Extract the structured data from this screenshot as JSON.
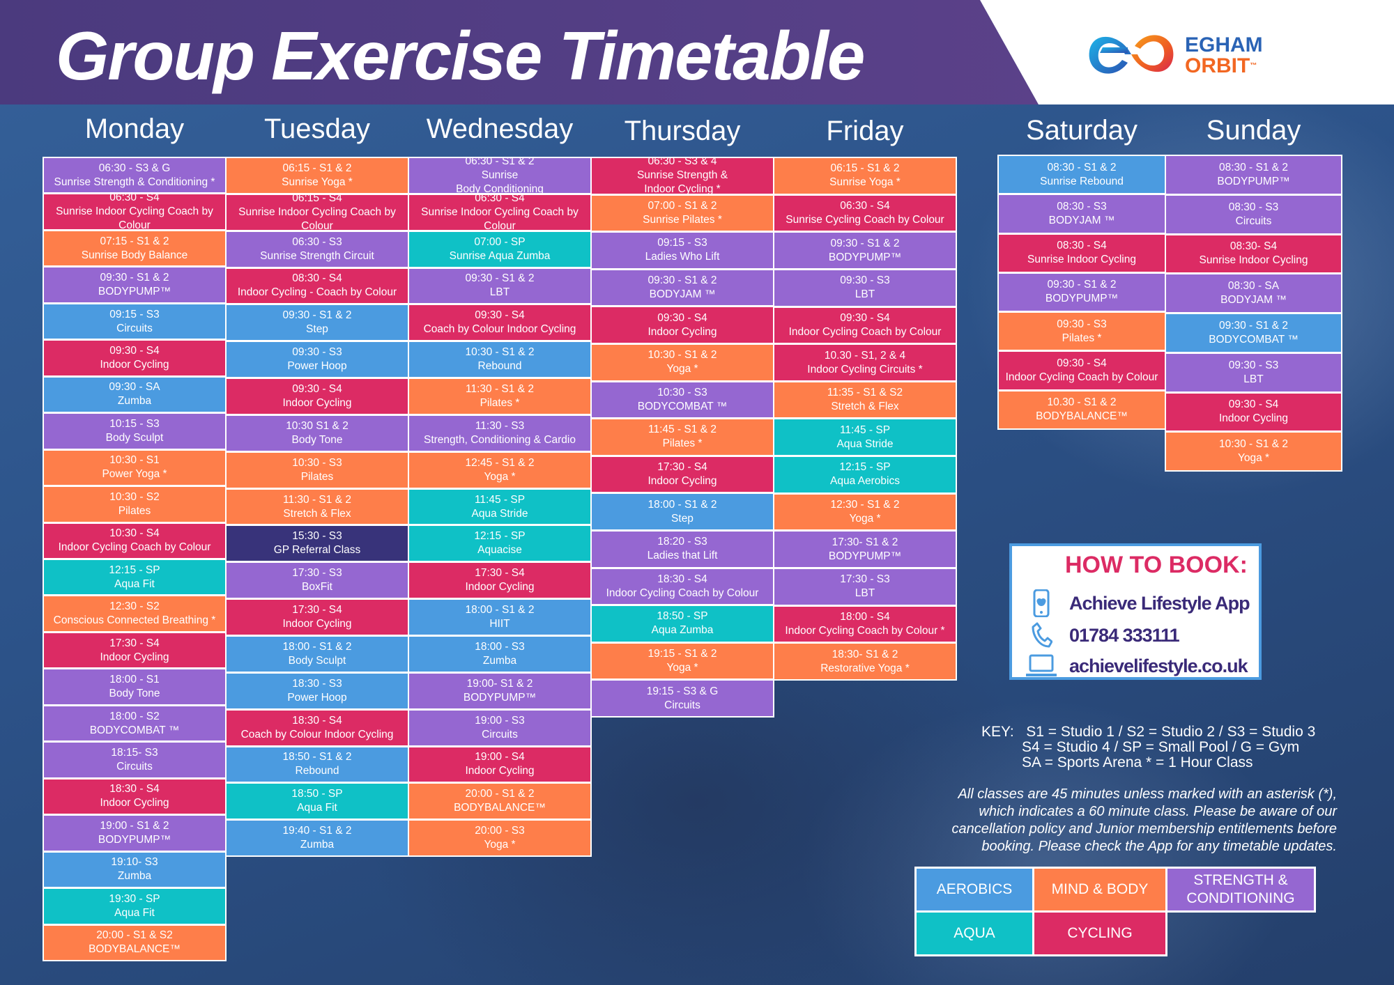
{
  "header": {
    "title": "Group Exercise Timetable",
    "brand_line1": "EGHAM",
    "brand_line2": "ORBIT",
    "brand_mark": "™"
  },
  "colors": {
    "aerobics": "#4b9be0",
    "mind_body": "#fe7e4a",
    "strength": "#9567d1",
    "aqua": "#0fc1c6",
    "cycling": "#dc2b64",
    "referral": "#38337a",
    "header_purple": "#4b3a7e",
    "book_title": "#dc2b64"
  },
  "schedule": [
    {
      "day": "Monday",
      "classes": [
        {
          "lines": [
            "06:30 - S3 & G",
            "Sunrise Strength & Conditioning *"
          ],
          "cat": "str"
        },
        {
          "lines": [
            "06:30 - S4",
            "Sunrise Indoor Cycling Coach by",
            "Colour"
          ],
          "cat": "cyc"
        },
        {
          "lines": [
            "07:15 - S1 & 2",
            "Sunrise Body Balance"
          ],
          "cat": "mind"
        },
        {
          "lines": [
            "09:30 - S1 & 2",
            "BODYPUMP™"
          ],
          "cat": "str"
        },
        {
          "lines": [
            "09:15 - S3",
            "Circuits"
          ],
          "cat": "aero"
        },
        {
          "lines": [
            "09:30 - S4",
            "Indoor Cycling"
          ],
          "cat": "cyc"
        },
        {
          "lines": [
            "09:30 - SA",
            "Zumba"
          ],
          "cat": "aero"
        },
        {
          "lines": [
            "10:15 - S3",
            "Body Sculpt"
          ],
          "cat": "str"
        },
        {
          "lines": [
            "10:30 - S1",
            "Power Yoga *"
          ],
          "cat": "mind"
        },
        {
          "lines": [
            "10:30 - S2",
            "Pilates"
          ],
          "cat": "mind"
        },
        {
          "lines": [
            "10:30 - S4",
            "Indoor Cycling Coach by Colour"
          ],
          "cat": "cyc"
        },
        {
          "lines": [
            "12:15 - SP",
            "Aqua Fit"
          ],
          "cat": "aqua"
        },
        {
          "lines": [
            "12:30 - S2",
            "Conscious Connected Breathing *"
          ],
          "cat": "mind"
        },
        {
          "lines": [
            "17:30 - S4",
            "Indoor Cycling"
          ],
          "cat": "cyc"
        },
        {
          "lines": [
            "18:00 - S1",
            "Body Tone"
          ],
          "cat": "str"
        },
        {
          "lines": [
            "18:00 - S2",
            "BODYCOMBAT ™"
          ],
          "cat": "str"
        },
        {
          "lines": [
            "18:15- S3",
            "Circuits"
          ],
          "cat": "str"
        },
        {
          "lines": [
            "18:30 - S4",
            "Indoor Cycling"
          ],
          "cat": "cyc"
        },
        {
          "lines": [
            "19:00 - S1 & 2",
            "BODYPUMP™"
          ],
          "cat": "str"
        },
        {
          "lines": [
            "19:10- S3",
            "Zumba"
          ],
          "cat": "aero"
        },
        {
          "lines": [
            "19:30 - SP",
            "Aqua Fit"
          ],
          "cat": "aqua"
        },
        {
          "lines": [
            "20:00 - S1 & S2",
            "BODYBALANCE™"
          ],
          "cat": "mind"
        }
      ]
    },
    {
      "day": "Tuesday",
      "classes": [
        {
          "lines": [
            "06:15 - S1 & 2",
            "Sunrise Yoga *"
          ],
          "cat": "mind"
        },
        {
          "lines": [
            "06:15 - S4",
            "Sunrise Indoor Cycling Coach by",
            "Colour"
          ],
          "cat": "cyc"
        },
        {
          "lines": [
            "06:30 - S3",
            "Sunrise Strength Circuit"
          ],
          "cat": "str"
        },
        {
          "lines": [
            "08:30 - S4",
            "Indoor Cycling - Coach by Colour"
          ],
          "cat": "cyc"
        },
        {
          "lines": [
            "09:30 - S1 & 2",
            "Step"
          ],
          "cat": "aero"
        },
        {
          "lines": [
            "09:30 - S3",
            "Power Hoop"
          ],
          "cat": "aero"
        },
        {
          "lines": [
            "09:30 - S4",
            "Indoor Cycling"
          ],
          "cat": "cyc"
        },
        {
          "lines": [
            "10:30 S1 & 2",
            "Body Tone"
          ],
          "cat": "str"
        },
        {
          "lines": [
            "10:30 - S3",
            "Pilates"
          ],
          "cat": "mind"
        },
        {
          "lines": [
            "11:30 - S1 & 2",
            "Stretch & Flex"
          ],
          "cat": "mind"
        },
        {
          "lines": [
            "15:30 - S3",
            "GP Referral Class"
          ],
          "cat": "gp"
        },
        {
          "lines": [
            "17:30 - S3",
            "BoxFit"
          ],
          "cat": "str"
        },
        {
          "lines": [
            "17:30 - S4",
            "Indoor Cycling"
          ],
          "cat": "cyc"
        },
        {
          "lines": [
            "18:00 - S1 & 2",
            "Body Sculpt"
          ],
          "cat": "aero"
        },
        {
          "lines": [
            "18:30 - S3",
            "Power Hoop"
          ],
          "cat": "aero"
        },
        {
          "lines": [
            "18:30 - S4",
            "Coach by Colour Indoor Cycling"
          ],
          "cat": "cyc"
        },
        {
          "lines": [
            "18:50 - S1 & 2",
            "Rebound"
          ],
          "cat": "aero"
        },
        {
          "lines": [
            "18:50 - SP",
            "Aqua Fit"
          ],
          "cat": "aqua"
        },
        {
          "lines": [
            "19:40 - S1 & 2",
            "Zumba"
          ],
          "cat": "aero"
        }
      ]
    },
    {
      "day": "Wednesday",
      "classes": [
        {
          "lines": [
            "06:30 - S1 & 2",
            "Sunrise",
            "Body Conditioning"
          ],
          "cat": "str"
        },
        {
          "lines": [
            "06:30 - S4",
            "Sunrise Indoor Cycling Coach by",
            "Colour"
          ],
          "cat": "cyc"
        },
        {
          "lines": [
            "07:00 - SP",
            "Sunrise Aqua Zumba"
          ],
          "cat": "aqua"
        },
        {
          "lines": [
            "09:30 - S1 & 2",
            "LBT"
          ],
          "cat": "str"
        },
        {
          "lines": [
            "09:30 - S4",
            "Coach by Colour Indoor Cycling"
          ],
          "cat": "cyc"
        },
        {
          "lines": [
            "10:30 - S1 & 2",
            "Rebound"
          ],
          "cat": "aero"
        },
        {
          "lines": [
            "11:30 - S1 & 2",
            "Pilates *"
          ],
          "cat": "mind"
        },
        {
          "lines": [
            "11:30 - S3",
            "Strength, Conditioning & Cardio"
          ],
          "cat": "str"
        },
        {
          "lines": [
            "12:45 - S1 & 2",
            "Yoga *"
          ],
          "cat": "mind"
        },
        {
          "lines": [
            "11:45 - SP",
            "Aqua Stride"
          ],
          "cat": "aqua"
        },
        {
          "lines": [
            "12:15 - SP",
            "Aquacise"
          ],
          "cat": "aqua"
        },
        {
          "lines": [
            "17:30 - S4",
            "Indoor Cycling"
          ],
          "cat": "cyc"
        },
        {
          "lines": [
            "18:00 - S1 & 2",
            "HIIT"
          ],
          "cat": "aero"
        },
        {
          "lines": [
            "18:00 - S3",
            "Zumba"
          ],
          "cat": "aero"
        },
        {
          "lines": [
            "19:00- S1 & 2",
            "BODYPUMP™"
          ],
          "cat": "str"
        },
        {
          "lines": [
            "19:00 - S3",
            "Circuits"
          ],
          "cat": "str"
        },
        {
          "lines": [
            "19:00 - S4",
            "Indoor Cycling"
          ],
          "cat": "cyc"
        },
        {
          "lines": [
            "20:00 - S1 & 2",
            "BODYBALANCE™"
          ],
          "cat": "mind"
        },
        {
          "lines": [
            "20:00 - S3",
            "Yoga *"
          ],
          "cat": "mind"
        }
      ]
    },
    {
      "day": "Thursday",
      "classes": [
        {
          "lines": [
            "06:30 - S3 & 4",
            "Sunrise Strength &",
            "Indoor Cycling *"
          ],
          "cat": "cyc"
        },
        {
          "lines": [
            "07:00 - S1 & 2",
            "Sunrise Pilates *"
          ],
          "cat": "mind"
        },
        {
          "lines": [
            "09:15 - S3",
            "Ladies Who Lift"
          ],
          "cat": "str"
        },
        {
          "lines": [
            "09:30 - S1 & 2",
            "BODYJAM ™"
          ],
          "cat": "str"
        },
        {
          "lines": [
            "09:30 - S4",
            "Indoor Cycling"
          ],
          "cat": "cyc"
        },
        {
          "lines": [
            "10:30 - S1 & 2",
            "Yoga *"
          ],
          "cat": "mind"
        },
        {
          "lines": [
            "10:30 - S3",
            "BODYCOMBAT ™"
          ],
          "cat": "str"
        },
        {
          "lines": [
            "11:45 - S1 & 2",
            "Pilates *"
          ],
          "cat": "mind"
        },
        {
          "lines": [
            "17:30 - S4",
            "Indoor Cycling"
          ],
          "cat": "cyc"
        },
        {
          "lines": [
            "18:00 - S1 & 2",
            "Step"
          ],
          "cat": "aero"
        },
        {
          "lines": [
            "18:20 - S3",
            "Ladies that Lift"
          ],
          "cat": "str"
        },
        {
          "lines": [
            "18:30 - S4",
            "Indoor Cycling  Coach by Colour"
          ],
          "cat": "str"
        },
        {
          "lines": [
            "18:50 - SP",
            "Aqua Zumba"
          ],
          "cat": "aqua"
        },
        {
          "lines": [
            "19:15 - S1 & 2",
            "Yoga *"
          ],
          "cat": "mind"
        },
        {
          "lines": [
            "19:15 - S3 & G",
            "Circuits"
          ],
          "cat": "str"
        }
      ]
    },
    {
      "day": "Friday",
      "classes": [
        {
          "lines": [
            "06:15 - S1 & 2",
            "Sunrise Yoga *"
          ],
          "cat": "mind"
        },
        {
          "lines": [
            "06:30 - S4",
            "Sunrise Cycling Coach by Colour"
          ],
          "cat": "cyc"
        },
        {
          "lines": [
            "09:30 - S1 & 2",
            "BODYPUMP™"
          ],
          "cat": "str"
        },
        {
          "lines": [
            "09:30 - S3",
            "LBT"
          ],
          "cat": "str"
        },
        {
          "lines": [
            "09:30 - S4",
            "Indoor Cycling Coach by Colour"
          ],
          "cat": "cyc"
        },
        {
          "lines": [
            "10.30 - S1, 2 & 4",
            "Indoor Cycling Circuits *"
          ],
          "cat": "cyc"
        },
        {
          "lines": [
            "11:35 - S1 & S2",
            "Stretch & Flex"
          ],
          "cat": "mind"
        },
        {
          "lines": [
            "11:45 - SP",
            "Aqua Stride"
          ],
          "cat": "aqua"
        },
        {
          "lines": [
            "12:15 - SP",
            "Aqua Aerobics"
          ],
          "cat": "aqua"
        },
        {
          "lines": [
            "12:30 - S1 & 2",
            "Yoga *"
          ],
          "cat": "mind"
        },
        {
          "lines": [
            "17:30- S1 & 2",
            "BODYPUMP™"
          ],
          "cat": "str"
        },
        {
          "lines": [
            "17:30 - S3",
            "LBT"
          ],
          "cat": "str"
        },
        {
          "lines": [
            "18:00 - S4",
            "Indoor Cycling Coach by Colour *"
          ],
          "cat": "cyc"
        },
        {
          "lines": [
            "18:30- S1 & 2",
            "Restorative Yoga *"
          ],
          "cat": "mind"
        }
      ]
    },
    {
      "day": "Saturday",
      "classes": [
        {
          "lines": [
            "08:30 - S1 & 2",
            "Sunrise Rebound"
          ],
          "cat": "aero"
        },
        {
          "lines": [
            "08:30 - S3",
            "BODYJAM ™"
          ],
          "cat": "str"
        },
        {
          "lines": [
            "08:30 - S4",
            "Sunrise Indoor Cycling"
          ],
          "cat": "cyc"
        },
        {
          "lines": [
            "09:30 - S1 & 2",
            "BODYPUMP™"
          ],
          "cat": "str"
        },
        {
          "lines": [
            "09:30 - S3",
            "Pilates *"
          ],
          "cat": "mind"
        },
        {
          "lines": [
            "09:30 - S4",
            "Indoor Cycling Coach by Colour"
          ],
          "cat": "cyc"
        },
        {
          "lines": [
            "10.30 - S1 & 2",
            "BODYBALANCE™"
          ],
          "cat": "mind"
        }
      ]
    },
    {
      "day": "Sunday",
      "classes": [
        {
          "lines": [
            "08:30 - S1 & 2",
            "BODYPUMP™"
          ],
          "cat": "str"
        },
        {
          "lines": [
            "08:30 - S3",
            "Circuits"
          ],
          "cat": "str"
        },
        {
          "lines": [
            "08:30- S4",
            "Sunrise Indoor Cycling"
          ],
          "cat": "cyc"
        },
        {
          "lines": [
            "08:30 - SA",
            "BODYJAM ™"
          ],
          "cat": "str"
        },
        {
          "lines": [
            "09:30 - S1 & 2",
            "BODYCOMBAT ™"
          ],
          "cat": "aero"
        },
        {
          "lines": [
            "09:30 - S3",
            "LBT"
          ],
          "cat": "str"
        },
        {
          "lines": [
            "09:30 - S4",
            "Indoor Cycling"
          ],
          "cat": "cyc"
        },
        {
          "lines": [
            "10:30 - S1 & 2",
            "Yoga *"
          ],
          "cat": "mind"
        }
      ]
    }
  ],
  "how_to_book": {
    "title": "HOW TO BOOK:",
    "app": "Achieve Lifestyle App",
    "phone": "01784 333111",
    "website": "achievelifestyle.co.uk"
  },
  "key": {
    "label": "KEY:",
    "line1": "S1 = Studio 1 / S2 = Studio 2 / S3 = Studio 3",
    "line2": "S4 = Studio 4 / SP = Small Pool / G = Gym",
    "line3": "SA = Sports Arena  * = 1 Hour Class"
  },
  "notice": {
    "line1": "All classes are 45 minutes unless marked with an asterisk (*),",
    "line2": "which indicates a 60 minute class. Please be aware of our",
    "line3": "cancellation policy and Junior membership entitlements before",
    "line4": "booking. Please check the App for any timetable updates."
  },
  "legend": {
    "aerobics": "AEROBICS",
    "mind_body": "MIND & BODY",
    "strength_1": "STRENGTH &",
    "strength_2": "CONDITIONING",
    "aqua": "AQUA",
    "cycling": "CYCLING"
  }
}
